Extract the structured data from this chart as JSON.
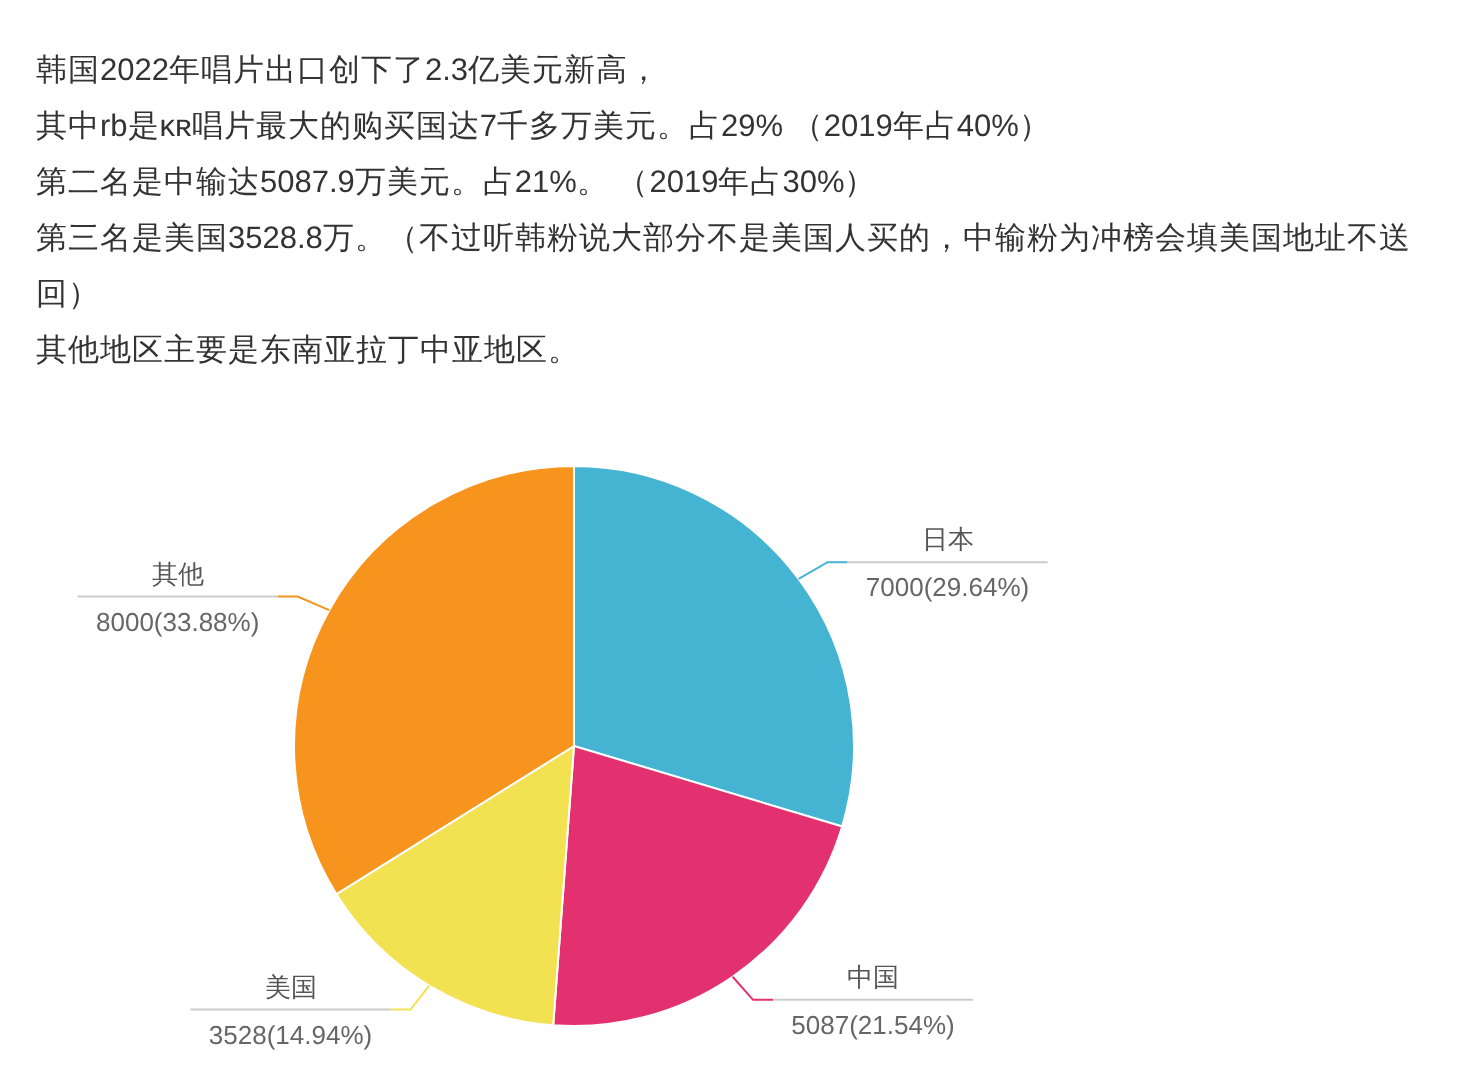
{
  "chart_data": {
    "type": "pie",
    "title": "韩国2022年唱片出口创下了2.3亿美元新高，",
    "annotations": [
      "其中rb是ᴋʀ唱片最大的购买国达7千多万美元。占29% （2019年占40%）",
      "第二名是中输达5087.9万美元。占21%。 （2019年占30%）",
      "第三名是美国3528.8万。（不过听韩粉说大部分不是美国人买的，中输粉为冲榜会填美国地址不送回）",
      "其他地区主要是东南亚拉丁中亚地区。"
    ],
    "categories": [
      "日本",
      "中国",
      "美国",
      "其他"
    ],
    "values": [
      7000,
      5087,
      3528,
      8000
    ],
    "colors": [
      "#44b4d2",
      "#e3316f",
      "#f2e150",
      "#f7941d"
    ],
    "value_labels": [
      "7000(29.64%)",
      "5087(21.54%)",
      "3528(14.94%)",
      "8000(33.88%)"
    ]
  }
}
